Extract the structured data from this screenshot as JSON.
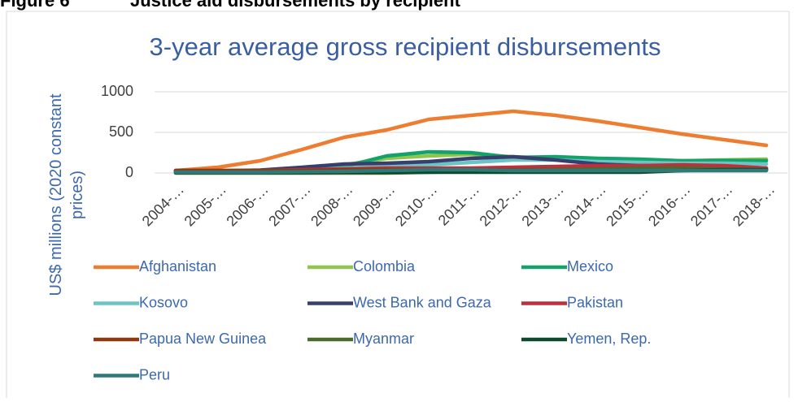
{
  "figure_label": "Figure 6",
  "figure_title": "Justice aid disbursements by recipient",
  "chart_data": {
    "type": "line",
    "title": "3-year average gross recipient disbursements",
    "y_label": "US$ millions (2020 constant prices)",
    "categories": [
      "2004-…",
      "2005-…",
      "2006-…",
      "2007-…",
      "2008-…",
      "2009-…",
      "2010-…",
      "2011-…",
      "2012-…",
      "2013-…",
      "2014-…",
      "2015-…",
      "2016-…",
      "2017-…",
      "2018-…"
    ],
    "ylim": [
      0,
      1000
    ],
    "yticks": [
      0,
      500,
      1000
    ],
    "grid": true,
    "series": [
      {
        "name": "Afghanistan",
        "color": "#ed7d31",
        "values": [
          30,
          70,
          150,
          290,
          440,
          530,
          660,
          710,
          760,
          710,
          640,
          560,
          480,
          410,
          340
        ]
      },
      {
        "name": "Colombia",
        "color": "#8fc54d",
        "values": [
          20,
          25,
          30,
          50,
          100,
          180,
          210,
          230,
          200,
          180,
          170,
          160,
          150,
          160,
          170
        ]
      },
      {
        "name": "Mexico",
        "color": "#12a26a",
        "values": [
          10,
          10,
          15,
          30,
          80,
          210,
          260,
          250,
          190,
          200,
          180,
          170,
          150,
          155,
          150
        ]
      },
      {
        "name": "Kosovo",
        "color": "#6cc5c5",
        "values": [
          10,
          20,
          30,
          40,
          60,
          80,
          100,
          130,
          160,
          160,
          140,
          130,
          120,
          120,
          110
        ]
      },
      {
        "name": "West Bank and Gaza",
        "color": "#383f6e",
        "values": [
          20,
          25,
          35,
          70,
          110,
          120,
          140,
          180,
          200,
          160,
          110,
          90,
          90,
          80,
          60
        ]
      },
      {
        "name": "Pakistan",
        "color": "#c0303c",
        "values": [
          30,
          30,
          30,
          40,
          50,
          60,
          60,
          60,
          70,
          80,
          90,
          90,
          100,
          90,
          60
        ]
      },
      {
        "name": "Papua New Guinea",
        "color": "#8b3a12",
        "values": [
          30,
          30,
          30,
          30,
          40,
          40,
          40,
          40,
          40,
          40,
          40,
          40,
          40,
          40,
          40
        ]
      },
      {
        "name": "Myanmar",
        "color": "#4a6b2b",
        "values": [
          0,
          0,
          0,
          0,
          0,
          0,
          10,
          20,
          30,
          40,
          50,
          60,
          60,
          50,
          40
        ]
      },
      {
        "name": "Yemen, Rep.",
        "color": "#0b4a2c",
        "values": [
          5,
          5,
          5,
          5,
          10,
          10,
          10,
          10,
          10,
          10,
          10,
          10,
          30,
          40,
          40
        ]
      },
      {
        "name": "Peru",
        "color": "#2f7a78",
        "values": [
          10,
          10,
          10,
          15,
          20,
          30,
          40,
          40,
          30,
          30,
          30,
          30,
          30,
          30,
          30
        ]
      }
    ]
  }
}
